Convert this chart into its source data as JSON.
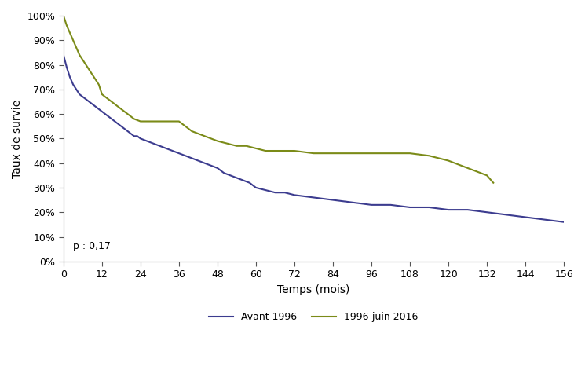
{
  "title": "",
  "xlabel": "Temps (mois)",
  "ylabel": "Taux de survie",
  "xlim": [
    0,
    156
  ],
  "ylim": [
    0,
    1.0
  ],
  "xticks": [
    0,
    12,
    24,
    36,
    48,
    60,
    72,
    84,
    96,
    108,
    120,
    132,
    144,
    156
  ],
  "yticks": [
    0,
    0.1,
    0.2,
    0.3,
    0.4,
    0.5,
    0.6,
    0.7,
    0.8,
    0.9,
    1.0
  ],
  "ytick_labels": [
    "0%",
    "10%",
    "20%",
    "30%",
    "40%",
    "50%",
    "60%",
    "70%",
    "80%",
    "90%",
    "100%"
  ],
  "pvalue_text": "p : 0,17",
  "legend_labels": [
    "Avant 1996",
    "1996-juin 2016"
  ],
  "color_avant1996": "#3c3c8f",
  "color_1996_2016": "#7b8b18",
  "line_width": 1.5,
  "curve_avant1996_x": [
    0,
    1,
    2,
    3,
    4,
    5,
    6,
    7,
    8,
    9,
    10,
    11,
    12,
    13,
    14,
    15,
    16,
    17,
    18,
    19,
    20,
    21,
    22,
    23,
    24,
    26,
    28,
    30,
    32,
    34,
    36,
    38,
    40,
    42,
    44,
    46,
    48,
    50,
    52,
    54,
    56,
    58,
    60,
    63,
    66,
    69,
    72,
    78,
    84,
    90,
    96,
    102,
    108,
    114,
    120,
    126,
    132,
    138,
    144,
    150,
    156
  ],
  "curve_avant1996_y": [
    0.84,
    0.79,
    0.75,
    0.72,
    0.7,
    0.68,
    0.67,
    0.66,
    0.65,
    0.64,
    0.63,
    0.62,
    0.61,
    0.6,
    0.59,
    0.58,
    0.57,
    0.56,
    0.55,
    0.54,
    0.53,
    0.52,
    0.51,
    0.51,
    0.5,
    0.49,
    0.48,
    0.47,
    0.46,
    0.45,
    0.44,
    0.43,
    0.42,
    0.41,
    0.4,
    0.39,
    0.38,
    0.36,
    0.35,
    0.34,
    0.33,
    0.32,
    0.3,
    0.29,
    0.28,
    0.28,
    0.27,
    0.26,
    0.25,
    0.24,
    0.23,
    0.23,
    0.22,
    0.22,
    0.21,
    0.21,
    0.2,
    0.19,
    0.18,
    0.17,
    0.16
  ],
  "curve_1996_x": [
    0,
    1,
    2,
    3,
    4,
    5,
    6,
    7,
    8,
    9,
    10,
    11,
    12,
    14,
    16,
    18,
    20,
    22,
    24,
    26,
    28,
    30,
    32,
    34,
    36,
    38,
    40,
    42,
    44,
    46,
    48,
    51,
    54,
    57,
    60,
    63,
    66,
    69,
    72,
    78,
    84,
    90,
    96,
    102,
    108,
    114,
    120,
    122,
    124,
    126,
    128,
    130,
    132,
    134
  ],
  "curve_1996_y": [
    1.0,
    0.96,
    0.93,
    0.9,
    0.87,
    0.84,
    0.82,
    0.8,
    0.78,
    0.76,
    0.74,
    0.72,
    0.68,
    0.66,
    0.64,
    0.62,
    0.6,
    0.58,
    0.57,
    0.57,
    0.57,
    0.57,
    0.57,
    0.57,
    0.57,
    0.55,
    0.53,
    0.52,
    0.51,
    0.5,
    0.49,
    0.48,
    0.47,
    0.47,
    0.46,
    0.45,
    0.45,
    0.45,
    0.45,
    0.44,
    0.44,
    0.44,
    0.44,
    0.44,
    0.44,
    0.43,
    0.41,
    0.4,
    0.39,
    0.38,
    0.37,
    0.36,
    0.35,
    0.32
  ]
}
